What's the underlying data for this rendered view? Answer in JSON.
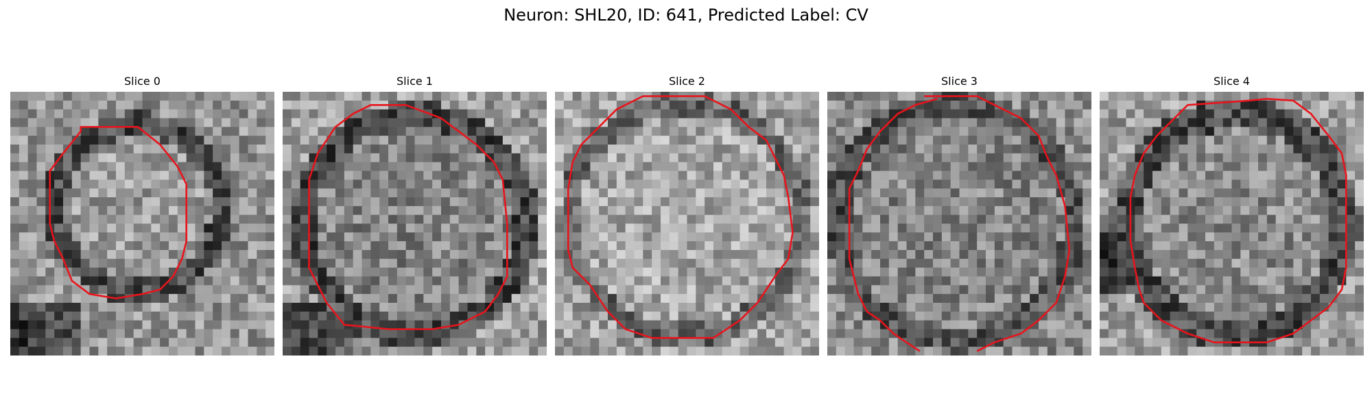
{
  "figure": {
    "title": "Neuron: SHL20, ID: 641, Predicted Label: CV"
  },
  "panels": [
    {
      "title": "Slice 0"
    },
    {
      "title": "Slice 1"
    },
    {
      "title": "Slice 2"
    },
    {
      "title": "Slice 3"
    },
    {
      "title": "Slice 4"
    }
  ],
  "colors": {
    "contour": "#e8141c",
    "background": "#ffffff"
  }
}
